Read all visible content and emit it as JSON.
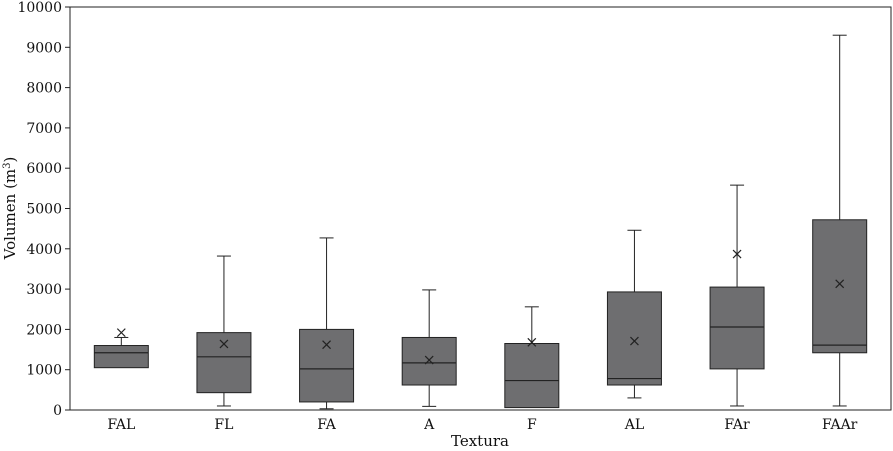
{
  "chart_data": {
    "type": "box",
    "xlabel": "Textura",
    "ylabel": "Volumen (m",
    "ylabel_sup": "3",
    "ylabel_close": ")",
    "ylim": [
      0,
      10000
    ],
    "yticks": [
      0,
      1000,
      2000,
      3000,
      4000,
      5000,
      6000,
      7000,
      8000,
      9000,
      10000
    ],
    "grid": false,
    "categories": [
      "FAL",
      "FL",
      "FA",
      "A",
      "F",
      "AL",
      "FAr",
      "FAAr"
    ],
    "boxes": [
      {
        "category": "FAL",
        "min": 1050,
        "q1": 1050,
        "median": 1420,
        "q3": 1600,
        "max": 1800,
        "mean": 1920
      },
      {
        "category": "FL",
        "min": 100,
        "q1": 430,
        "median": 1320,
        "q3": 1920,
        "max": 3820,
        "mean": 1640
      },
      {
        "category": "FA",
        "min": 30,
        "q1": 200,
        "median": 1020,
        "q3": 2000,
        "max": 4270,
        "mean": 1620
      },
      {
        "category": "A",
        "min": 90,
        "q1": 620,
        "median": 1170,
        "q3": 1800,
        "max": 2980,
        "mean": 1240
      },
      {
        "category": "F",
        "min": 60,
        "q1": 60,
        "median": 730,
        "q3": 1650,
        "max": 2560,
        "mean": 1680
      },
      {
        "category": "AL",
        "min": 300,
        "q1": 620,
        "median": 780,
        "q3": 2930,
        "max": 4460,
        "mean": 1710
      },
      {
        "category": "FAr",
        "min": 100,
        "q1": 1020,
        "median": 2060,
        "q3": 3050,
        "max": 5580,
        "mean": 3870
      },
      {
        "category": "FAAr",
        "min": 100,
        "q1": 1420,
        "median": 1610,
        "q3": 4720,
        "max": 9300,
        "mean": 3130
      }
    ],
    "colors": {
      "box_fill": "#6e6e70",
      "stroke": "#222222"
    }
  }
}
